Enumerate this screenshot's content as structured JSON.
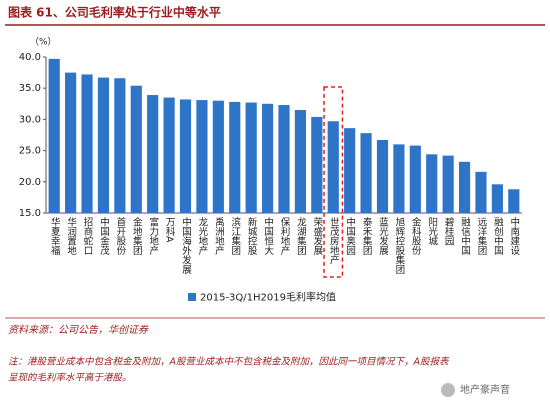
{
  "chart_data": {
    "type": "bar",
    "title": "图表 61、公司毛利率处于行业中等水平",
    "y_unit": "（%）",
    "categories": [
      "华夏幸福",
      "华润置地",
      "招商蛇口",
      "中国金茂",
      "首开股份",
      "金地集团",
      "富力地产",
      "万科A",
      "中国海外发展",
      "龙光地产",
      "禹洲地产",
      "滨江集团",
      "新城控股",
      "中国恒大",
      "保利地产",
      "龙湖集团",
      "荣盛发展",
      "世茂房地产",
      "中国奥园",
      "泰禾集团",
      "蓝光发展",
      "旭辉控股集团",
      "金科股份",
      "阳光城",
      "碧桂园",
      "融信中国",
      "远洋集团",
      "融创中国",
      "中南建设"
    ],
    "series": [
      {
        "name": "2015-3Q/1H2019毛利率均值",
        "color": "#2e75c8",
        "values": [
          39.7,
          37.5,
          37.2,
          36.7,
          36.6,
          35.4,
          33.9,
          33.5,
          33.2,
          33.1,
          33.0,
          32.8,
          32.7,
          32.5,
          32.3,
          31.5,
          30.4,
          29.7,
          28.6,
          27.8,
          26.7,
          26.0,
          25.8,
          24.4,
          24.2,
          23.2,
          21.6,
          19.6,
          18.8
        ]
      }
    ],
    "ylim": [
      15,
      40
    ],
    "yticks": [
      {
        "value": 15,
        "label": "15.0"
      },
      {
        "value": 20,
        "label": "20.0"
      },
      {
        "value": 25,
        "label": "25.0"
      },
      {
        "value": 30,
        "label": "30.0"
      },
      {
        "value": 35,
        "label": "35.0"
      },
      {
        "value": 40,
        "label": "40.0"
      }
    ],
    "source": "资料来源：公司公告，华创证券",
    "note": [
      "注：港股营业成本中包含税金及附加，A股营业成本中不包含税金及附加，因此同一项目情况下，A股报表",
      "呈现的毛利率水平高于港股。"
    ],
    "watermark": "地产豪声音"
  }
}
